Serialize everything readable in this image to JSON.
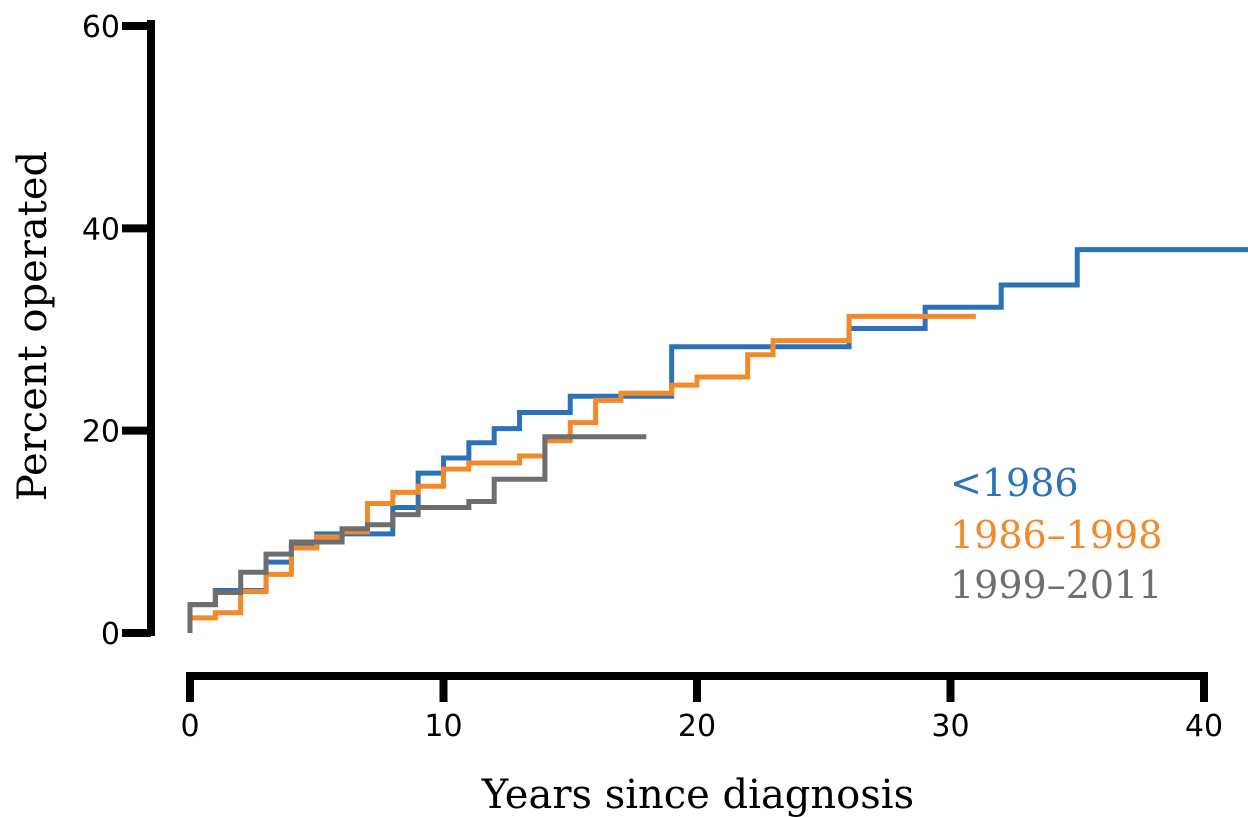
{
  "chart_data": {
    "type": "line",
    "step": true,
    "xlabel": "Years since diagnosis",
    "ylabel": "Percent operated",
    "xlim": [
      0,
      40
    ],
    "ylim": [
      0,
      60
    ],
    "xticks": [
      0,
      10,
      20,
      30,
      40
    ],
    "yticks": [
      0,
      20,
      40,
      60
    ],
    "grid": false,
    "legend_position": "right",
    "series": [
      {
        "name": "<1986",
        "color": "#2b73b8",
        "x": [
          0,
          1,
          3,
          4,
          5,
          8,
          9,
          10,
          11,
          12,
          13,
          15,
          19,
          26,
          29,
          32,
          35,
          41.9
        ],
        "y": [
          2.8,
          4.2,
          7.0,
          8.5,
          9.8,
          12.4,
          15.8,
          17.3,
          18.8,
          20.2,
          21.8,
          23.4,
          28.3,
          30.1,
          32.2,
          34.4,
          37.9,
          37.9
        ]
      },
      {
        "name": "1986–1998",
        "color": "#f28a2a",
        "x": [
          0,
          1,
          2,
          3,
          4,
          5,
          6,
          7,
          8,
          9,
          10,
          11,
          13,
          14,
          15,
          16,
          17,
          19,
          20,
          22,
          23,
          26,
          31
        ],
        "y": [
          1.5,
          2.0,
          4.1,
          5.8,
          8.4,
          9.5,
          10.0,
          12.8,
          13.9,
          14.5,
          16.2,
          16.8,
          17.5,
          19.0,
          20.8,
          23.0,
          23.7,
          24.5,
          25.3,
          27.5,
          28.9,
          31.3,
          31.3
        ]
      },
      {
        "name": "1999–2011",
        "color": "#6e6e6e",
        "x": [
          0,
          1,
          2,
          3,
          4,
          6,
          7,
          8,
          9,
          11,
          12,
          14,
          18
        ],
        "y": [
          2.8,
          4.0,
          6.0,
          7.8,
          9.0,
          10.3,
          10.7,
          11.7,
          12.4,
          13.0,
          15.2,
          19.4,
          19.4
        ]
      }
    ]
  }
}
